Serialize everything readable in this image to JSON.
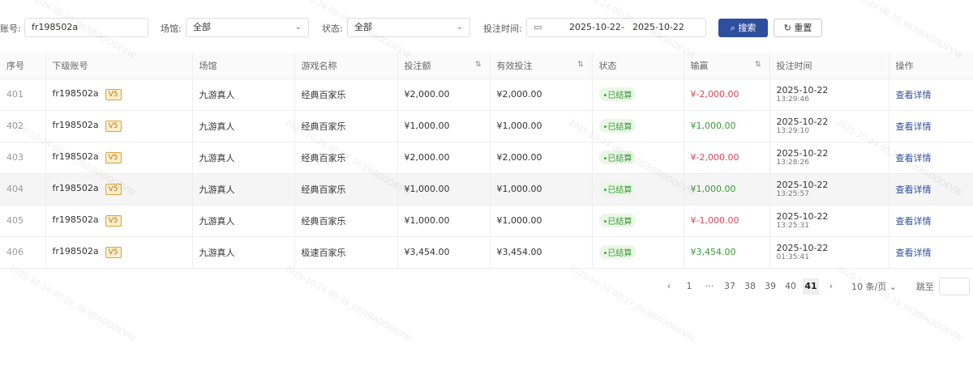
{
  "filters": {
    "account_label": "账号:",
    "account_value": "fr198502a",
    "venue_label": "场馆:",
    "venue_value": "全部",
    "status_label": "状态:",
    "status_value": "全部",
    "time_label": "投注时间:",
    "date_start": "2025-10-22",
    "date_sep": "-",
    "date_end": "2025-10-22",
    "search_label": "搜索",
    "reset_label": "重置"
  },
  "table": {
    "headers": [
      "序号",
      "下级账号",
      "场馆",
      "游戏名称",
      "投注额",
      "有效投注",
      "状态",
      "输赢",
      "投注时间",
      "操作"
    ],
    "rows": [
      {
        "idx": "401",
        "account": "fr198502a",
        "vip": "V5",
        "venue": "九游真人",
        "game": "经典百家乐",
        "bet": "¥2,000.00",
        "valid": "¥2,000.00",
        "status": "•已结算",
        "win": "¥-2,000.00",
        "win_sign": "neg",
        "date": "2025-10-22",
        "time": "13:29:46",
        "action": "查看详情"
      },
      {
        "idx": "402",
        "account": "fr198502a",
        "vip": "V5",
        "venue": "九游真人",
        "game": "经典百家乐",
        "bet": "¥1,000.00",
        "valid": "¥1,000.00",
        "status": "•已结算",
        "win": "¥1,000.00",
        "win_sign": "pos",
        "date": "2025-10-22",
        "time": "13:29:10",
        "action": "查看详情"
      },
      {
        "idx": "403",
        "account": "fr198502a",
        "vip": "V5",
        "venue": "九游真人",
        "game": "经典百家乐",
        "bet": "¥2,000.00",
        "valid": "¥2,000.00",
        "status": "•已结算",
        "win": "¥-2,000.00",
        "win_sign": "neg",
        "date": "2025-10-22",
        "time": "13:28:26",
        "action": "查看详情"
      },
      {
        "idx": "404",
        "account": "fr198502a",
        "vip": "V5",
        "venue": "九游真人",
        "game": "经典百家乐",
        "bet": "¥1,000.00",
        "valid": "¥1,000.00",
        "status": "•已结算",
        "win": "¥1,000.00",
        "win_sign": "pos",
        "date": "2025-10-22",
        "time": "13:25:57",
        "action": "查看详情"
      },
      {
        "idx": "405",
        "account": "fr198502a",
        "vip": "V5",
        "venue": "九游真人",
        "game": "经典百家乐",
        "bet": "¥1,000.00",
        "valid": "¥1,000.00",
        "status": "•已结算",
        "win": "¥-1,000.00",
        "win_sign": "neg",
        "date": "2025-10-22",
        "time": "13:25:31",
        "action": "查看详情"
      },
      {
        "idx": "406",
        "account": "fr198502a",
        "vip": "V5",
        "venue": "九游真人",
        "game": "极速百家乐",
        "bet": "¥3,454.00",
        "valid": "¥3,454.00",
        "status": "•已结算",
        "win": "¥3,454.00",
        "win_sign": "pos",
        "date": "2025-10-22",
        "time": "01:35:41",
        "action": "查看详情"
      }
    ]
  },
  "pagination": {
    "pages": [
      "1",
      "···",
      "37",
      "38",
      "39",
      "40",
      "41"
    ],
    "current": "41",
    "page_size": "10 条/页",
    "jump_label": "跳至"
  },
  "watermark": "2025-10-24 00:39_063JBAOOOEVW",
  "colors": {
    "primary": "#2f4e9e",
    "loss": "#d9475a",
    "win": "#3a9a3a"
  }
}
